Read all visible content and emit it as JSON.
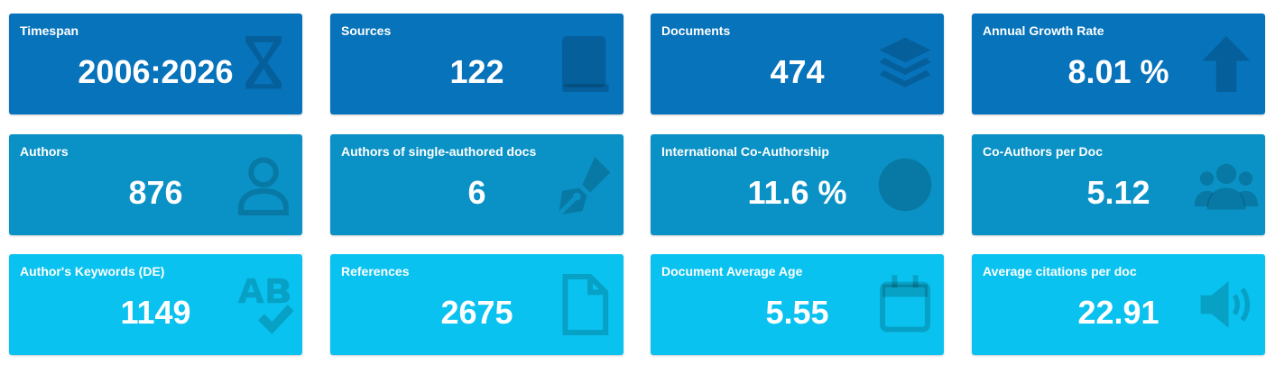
{
  "cards": [
    {
      "label": "Timespan",
      "value": "2006:2026"
    },
    {
      "label": "Sources",
      "value": "122"
    },
    {
      "label": "Documents",
      "value": "474"
    },
    {
      "label": "Annual Growth Rate",
      "value": "8.01 %"
    },
    {
      "label": "Authors",
      "value": "876"
    },
    {
      "label": "Authors of single-authored docs",
      "value": "6"
    },
    {
      "label": "International Co-Authorship",
      "value": "11.6 %"
    },
    {
      "label": "Co-Authors per Doc",
      "value": "5.12"
    },
    {
      "label": "Author's Keywords (DE)",
      "value": "1149"
    },
    {
      "label": "References",
      "value": "2675"
    },
    {
      "label": "Document Average Age",
      "value": "5.55"
    },
    {
      "label": "Average citations per doc",
      "value": "22.91"
    }
  ]
}
